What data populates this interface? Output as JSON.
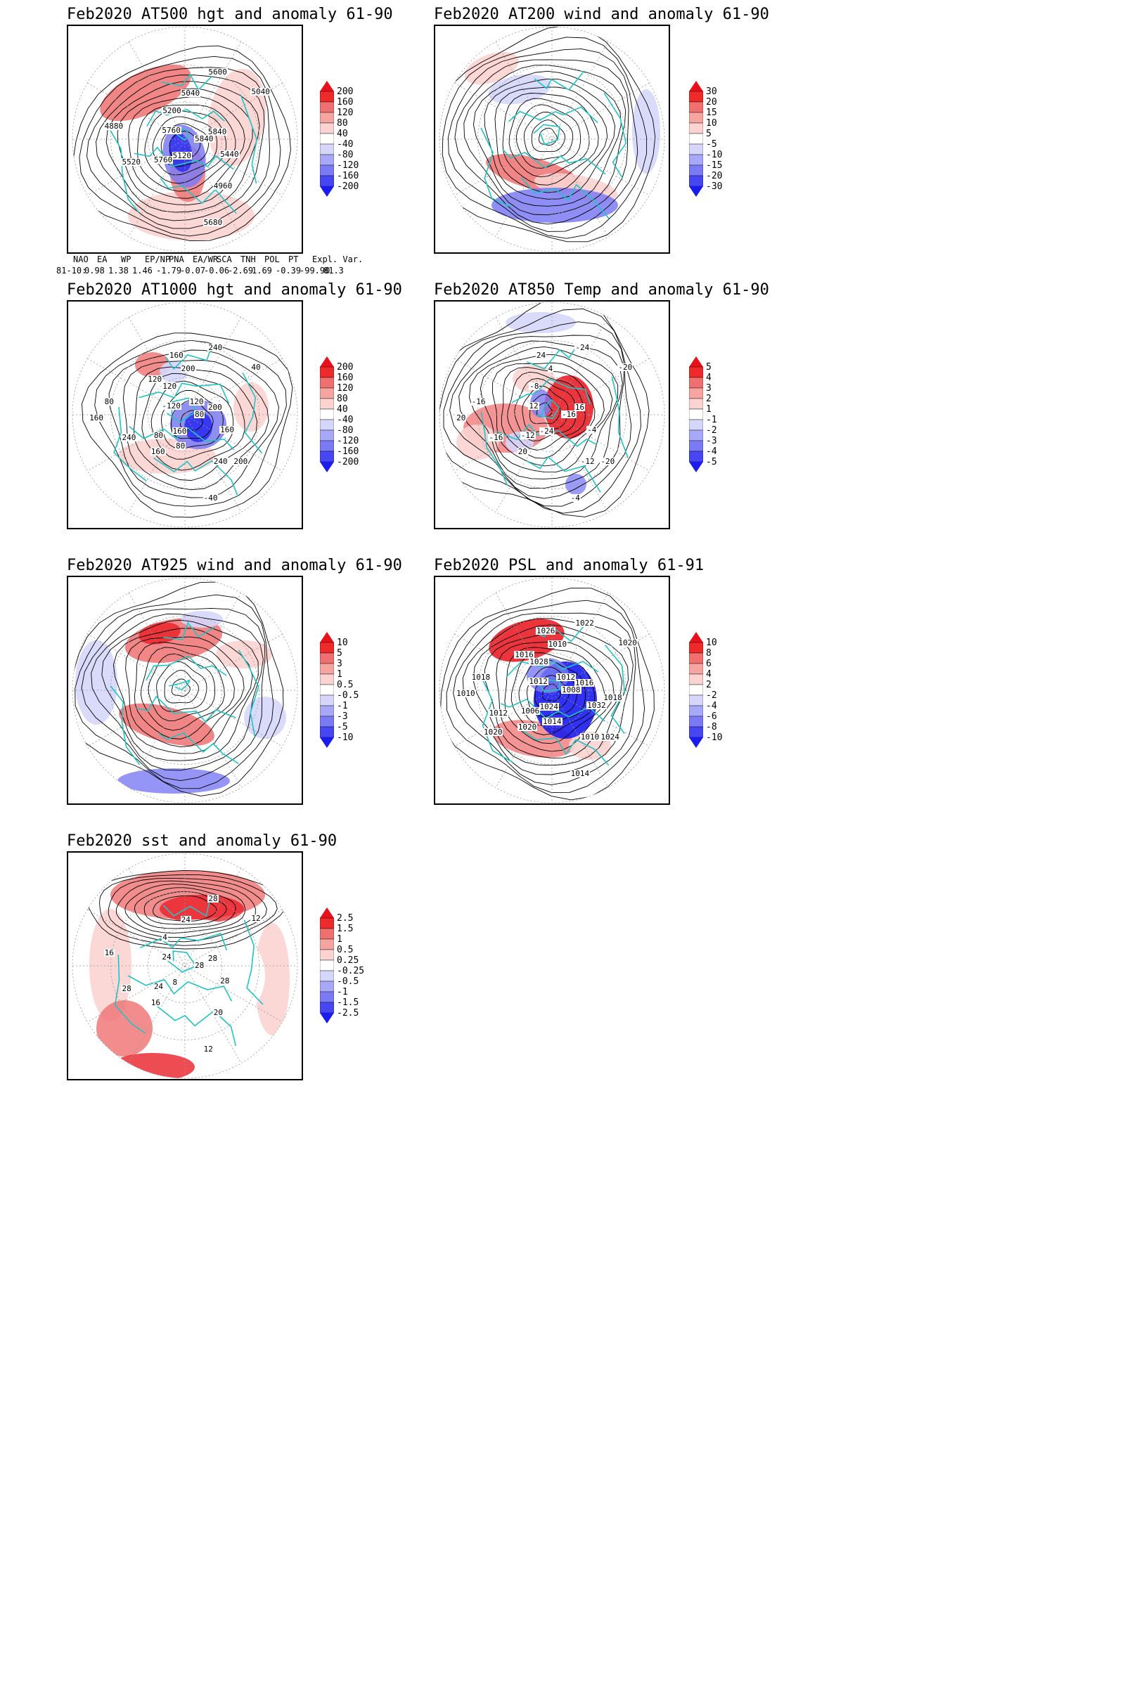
{
  "colors": {
    "red_strong": "#e8101a",
    "red_mid": "#f07070",
    "red_light": "#fbd3d0",
    "blue_strong": "#1b1bf0",
    "blue_mid": "#7a7af5",
    "blue_light": "#d6d6fb",
    "coast": "#20c4c4",
    "contour": "#000000"
  },
  "panels": [
    {
      "id": "at500",
      "title": "Feb2020 AT500 hgt and anomaly 61-90",
      "colorbar": [
        "200",
        "160",
        "120",
        "80",
        "40",
        "-40",
        "-80",
        "-120",
        "-160",
        "-200"
      ],
      "contour_labels": [
        "5840",
        "5760",
        "5040",
        "4960",
        "4880",
        "5040",
        "5120",
        "5200",
        "5440",
        "5520",
        "5600",
        "5680",
        "5760",
        "5840"
      ]
    },
    {
      "id": "at200",
      "title": "Feb2020 AT200 wind and anomaly 61-90",
      "colorbar": [
        "30",
        "20",
        "15",
        "10",
        "5",
        "-5",
        "-10",
        "-15",
        "-20",
        "-30"
      ],
      "contour_labels": []
    },
    {
      "id": "at1000",
      "title": "Feb2020 AT1000 hgt and anomaly 61-90",
      "colorbar": [
        "200",
        "160",
        "120",
        "80",
        "40",
        "-40",
        "-80",
        "-120",
        "-160",
        "-200"
      ],
      "contour_labels": [
        "80",
        "80",
        "200",
        "240",
        "80",
        "40",
        "160",
        "120",
        "160",
        "240",
        "240",
        "-40",
        "-120",
        "200",
        "160",
        "160",
        "200",
        "160",
        "120",
        "80",
        "120"
      ]
    },
    {
      "id": "at850",
      "title": "Feb2020 AT850 Temp and anomaly 61-90",
      "colorbar": [
        "5",
        "4",
        "3",
        "2",
        "1",
        "-1",
        "-2",
        "-3",
        "-4",
        "-5"
      ],
      "contour_labels": [
        "-16",
        "-12",
        "4",
        "-12",
        "-16",
        "-20",
        "-24",
        "-8",
        "-4",
        "-16",
        "-24",
        "-4",
        "12",
        "16",
        "20",
        "24",
        "-20",
        "20"
      ]
    },
    {
      "id": "at925",
      "title": "Feb2020 AT925 wind and anomaly 61-90",
      "colorbar": [
        "10",
        "5",
        "3",
        "1",
        "0.5",
        "-0.5",
        "-1",
        "-3",
        "-5",
        "-10"
      ],
      "contour_labels": []
    },
    {
      "id": "psl",
      "title": "Feb2020 PSL and anomaly 61-91",
      "colorbar": [
        "10",
        "8",
        "6",
        "4",
        "2",
        "-2",
        "-4",
        "-6",
        "-8",
        "-10"
      ],
      "contour_labels": [
        "1008",
        "1006",
        "1010",
        "1010",
        "1018",
        "1020",
        "1024",
        "1028",
        "1032",
        "1012",
        "1022",
        "1014",
        "1012",
        "1016",
        "1020",
        "1026",
        "1024",
        "1010",
        "1012",
        "1014",
        "1016",
        "1018",
        "1020"
      ]
    },
    {
      "id": "sst",
      "title": "Feb2020 sst and anomaly 61-90",
      "colorbar": [
        "2.5",
        "1.5",
        "1",
        "0.5",
        "0.25",
        "-0.25",
        "-0.5",
        "-1",
        "-1.5",
        "-2.5"
      ],
      "contour_labels": [
        "28",
        "24",
        "24",
        "20",
        "16",
        "12",
        "8",
        "4",
        "28",
        "28",
        "28",
        "12",
        "24",
        "28",
        "16"
      ]
    }
  ],
  "indices": {
    "row_label": "81-10:",
    "headers": [
      "NAO",
      "EA",
      "WP",
      "EP/NP",
      "PNA",
      "EA/WR",
      "SCA",
      "TNH",
      "POL",
      "PT",
      "Expl. Var."
    ],
    "values": [
      "0.98",
      "1.38",
      "1.46",
      "-1.79",
      "-0.07",
      "-0.06",
      "-2.69",
      "1.69",
      "-0.39",
      "-99.90",
      "81.3"
    ]
  }
}
